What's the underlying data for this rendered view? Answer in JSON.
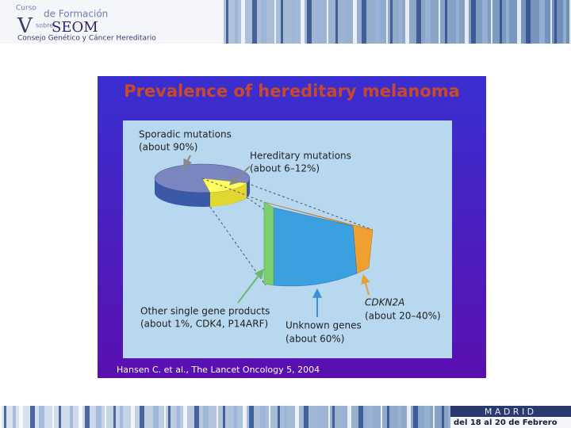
{
  "header": {
    "course": "Curso",
    "course_of": "de Formación",
    "about": "sobre",
    "org": "SEOM",
    "subtitle": "Consejo Genético y Cáncer Hereditario"
  },
  "figure": {
    "title": "Prevalence of hereditary melanoma",
    "labels": [
      {
        "name": "Sporadic mutations",
        "detail": "(about 90%)"
      },
      {
        "name": "Hereditary mutations",
        "detail": "(about 6–12%)"
      },
      {
        "name": "Other single gene products",
        "detail": "(about 1%, CDK4, P14ARF)"
      },
      {
        "name": "Unknown genes",
        "detail": "(about 60%)"
      },
      {
        "name": "CDKN2A",
        "detail": "(about 20–40%)"
      }
    ],
    "citation": "Hansen C. et al., The Lancet Oncology 5, 2004"
  },
  "footer": {
    "city": "M A D R I D",
    "dates": "del 18 al 20 de Febrero"
  }
}
